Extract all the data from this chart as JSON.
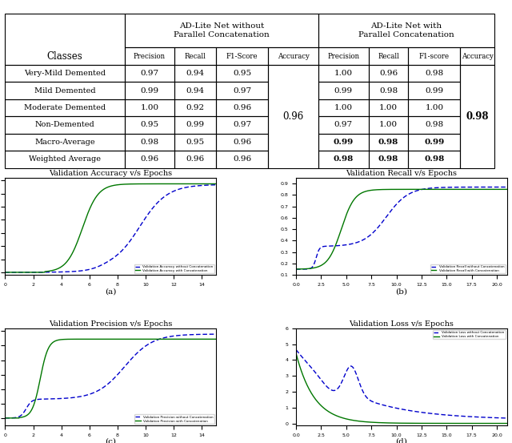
{
  "col_headers_group1": "AD-Lite Net without\nParallel Concatenation",
  "col_headers_group2": "AD-Lite Net with\nParallel Concatenation",
  "sub_headers": [
    "Precision",
    "Recall",
    "F1-Score",
    "Accuracy",
    "Precision",
    "Recall",
    "F1-score",
    "Accuracy"
  ],
  "row_labels": [
    "Very-Mild Demented",
    "Mild Demented",
    "Moderate Demented",
    "Non-Demented",
    "Macro-Average",
    "Weighted Average"
  ],
  "data_without": [
    [
      0.97,
      0.94,
      0.95
    ],
    [
      0.99,
      0.94,
      0.97
    ],
    [
      1.0,
      0.92,
      0.96
    ],
    [
      0.95,
      0.99,
      0.97
    ],
    [
      0.98,
      0.95,
      0.96
    ],
    [
      0.96,
      0.96,
      0.96
    ]
  ],
  "accuracy_without": "0.96",
  "data_with": [
    [
      1.0,
      0.96,
      0.98
    ],
    [
      0.99,
      0.98,
      0.99
    ],
    [
      1.0,
      1.0,
      1.0
    ],
    [
      0.97,
      1.0,
      0.98
    ],
    [
      0.99,
      0.98,
      0.99
    ],
    [
      0.98,
      0.98,
      0.98
    ]
  ],
  "accuracy_with": "0.98",
  "bold_rows": [
    4,
    5
  ],
  "subplot_titles": [
    "Validation Accuracy v/s Epochs",
    "Validation Recall v/s Epochs",
    "Validation Precision v/s Epochs",
    "Validation Loss v/s Epochs"
  ],
  "subplot_labels": [
    "(a)",
    "(b)",
    "(c)",
    "(d)"
  ],
  "legend_without": [
    "Validation Accuracy without Concatenation",
    "Validation Recall without Concatenation",
    "Validation Precision without Concatenation",
    "Validation Loss without Concatenation"
  ],
  "legend_with": [
    "Validation Accuracy with Concatenation",
    "Validation Recall with Concatenation",
    "Validation Precision with Concatenation",
    "Validation Loss with Concatenation"
  ],
  "color_without": "#0000cc",
  "color_with": "#007700"
}
